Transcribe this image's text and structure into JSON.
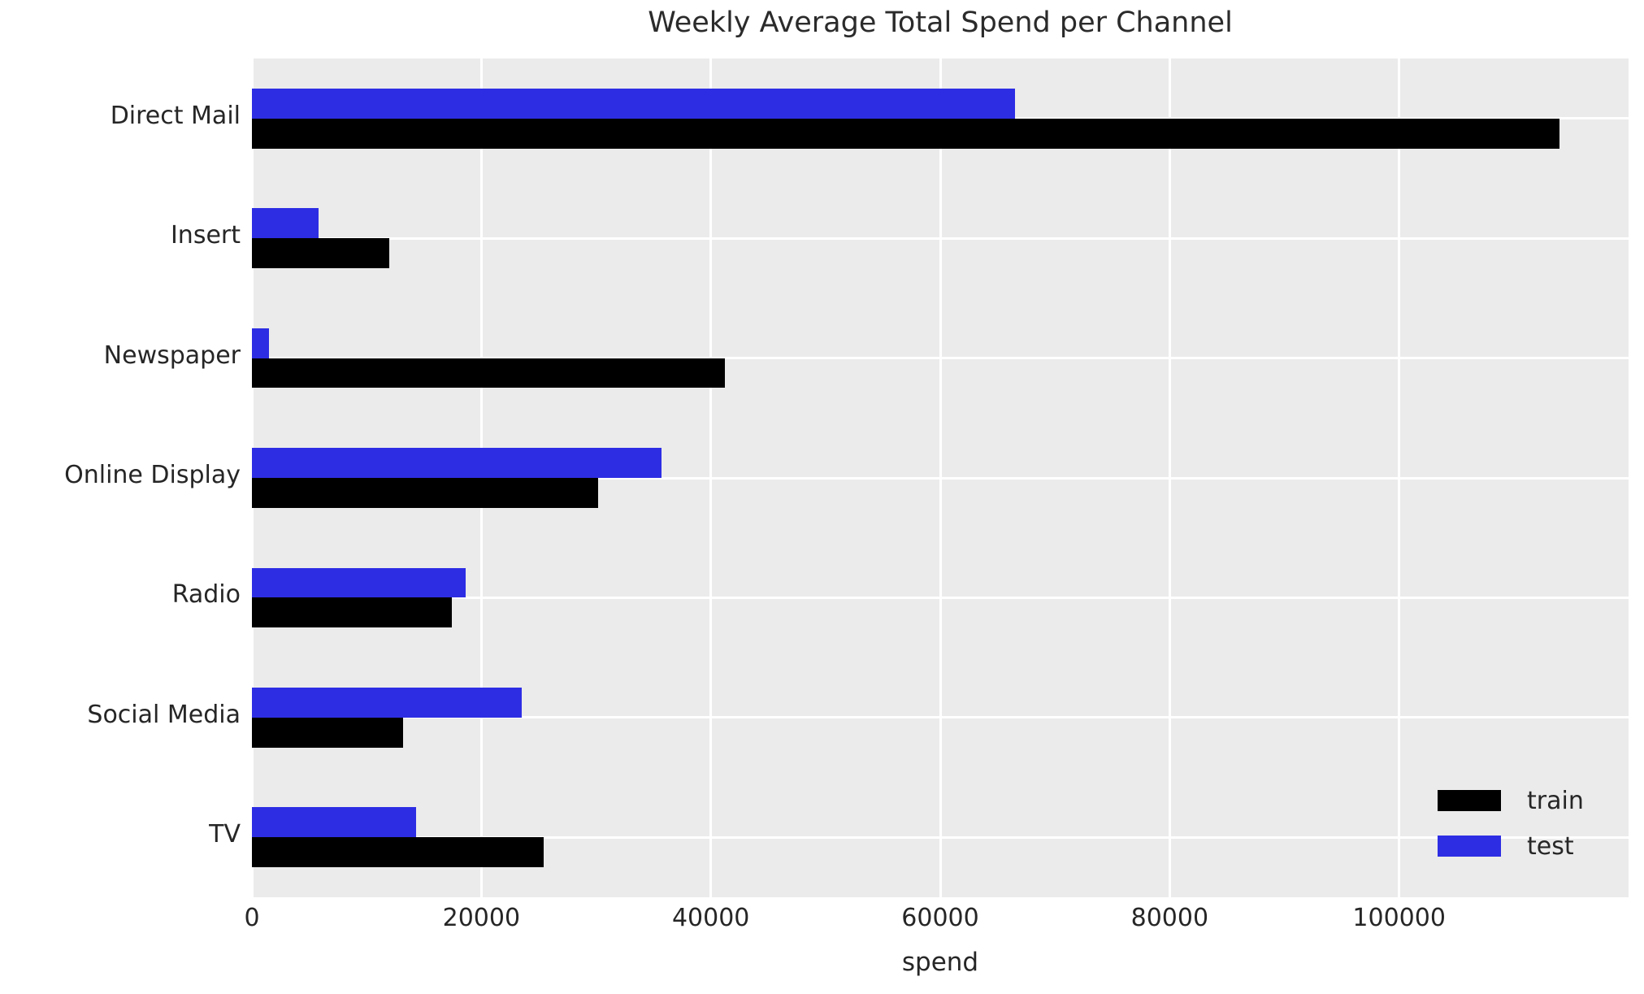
{
  "figure": {
    "background": "#ffffff",
    "plot_background": "#ebebeb",
    "gridline_color": "#ffffff",
    "text_color": "#262626"
  },
  "chart_data": {
    "type": "bar",
    "orientation": "horizontal",
    "title": "Weekly Average Total Spend per Channel",
    "xlabel": "spend",
    "ylabel": "",
    "categories": [
      "Direct Mail",
      "Insert",
      "Newspaper",
      "Online Display",
      "Radio",
      "Social Media",
      "TV"
    ],
    "series": [
      {
        "name": "train",
        "color": "#000000",
        "values": [
          114000,
          12000,
          41200,
          30200,
          17400,
          13200,
          25400
        ]
      },
      {
        "name": "test",
        "color": "#2d2de4",
        "values": [
          66500,
          5800,
          1500,
          35700,
          18600,
          23500,
          14300
        ]
      }
    ],
    "series_visual_order_top_to_bottom": [
      "test",
      "train"
    ],
    "xlim": [
      0,
      120000
    ],
    "xticks": [
      0,
      20000,
      40000,
      60000,
      80000,
      100000
    ],
    "xtick_labels": [
      "0",
      "20000",
      "40000",
      "60000",
      "80000",
      "100000"
    ],
    "grid": true,
    "grid_axis": "both",
    "legend": {
      "position": "lower right",
      "entries": [
        "train",
        "test"
      ]
    }
  }
}
